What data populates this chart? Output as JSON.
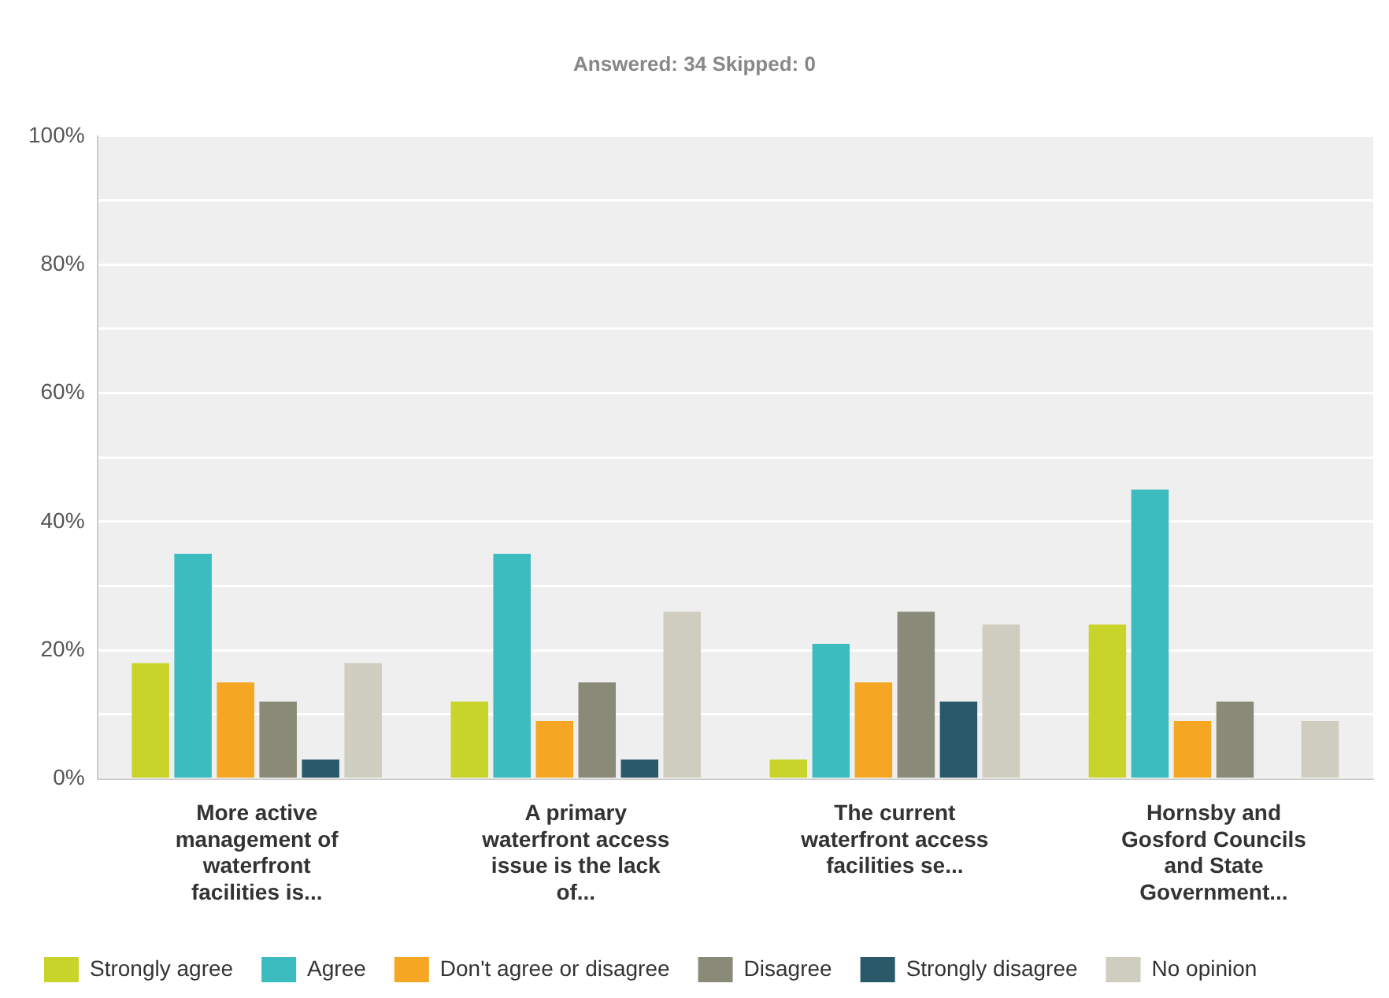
{
  "chart_data": {
    "type": "bar",
    "subtitle": "Answered: 34    Skipped: 0",
    "categories": [
      "More active management of waterfront facilities is...",
      "A primary waterfront access issue is the lack of...",
      "The current waterfront access facilities se...",
      "Hornsby and Gosford Councils and State Government..."
    ],
    "series": [
      {
        "name": "Strongly agree",
        "color": "#c8d42a",
        "values": [
          18,
          12,
          3,
          24
        ]
      },
      {
        "name": "Agree",
        "color": "#3dbcc0",
        "values": [
          35,
          35,
          21,
          45
        ]
      },
      {
        "name": "Don't agree or disagree",
        "color": "#f5a623",
        "values": [
          15,
          9,
          15,
          9
        ]
      },
      {
        "name": "Disagree",
        "color": "#8a8a78",
        "values": [
          12,
          15,
          26,
          12
        ]
      },
      {
        "name": "Strongly disagree",
        "color": "#2a5a6a",
        "values": [
          3,
          3,
          12,
          0
        ]
      },
      {
        "name": "No opinion",
        "color": "#cfcdbf",
        "values": [
          18,
          26,
          24,
          9
        ]
      }
    ],
    "ylim": [
      0,
      100
    ],
    "yticks": [
      {
        "value": 0,
        "label": "0%"
      },
      {
        "value": 10,
        "label": null
      },
      {
        "value": 20,
        "label": "20%"
      },
      {
        "value": 30,
        "label": null
      },
      {
        "value": 40,
        "label": "40%"
      },
      {
        "value": 50,
        "label": null
      },
      {
        "value": 60,
        "label": "60%"
      },
      {
        "value": 70,
        "label": null
      },
      {
        "value": 80,
        "label": "80%"
      },
      {
        "value": 90,
        "label": null
      },
      {
        "value": 100,
        "label": "100%"
      }
    ],
    "grid": "y",
    "legend": "bottom left"
  }
}
